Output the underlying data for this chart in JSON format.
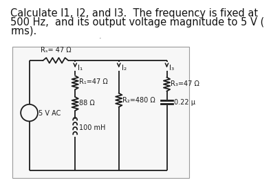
{
  "title_line1": "Calculate I1, I2, and I3.  The frequency is fixed at",
  "title_line2": "500 Hz,  and its output voltage magnitude to 5 V (",
  "title_line3": "rms).",
  "bg_color": "#ffffff",
  "line_color": "#1a1a1a",
  "Rs_label": "Rₛ= 47 Ω",
  "R1_label": "R₁=47 Ω",
  "R2_label": "R₂=480 Ω",
  "R3_label": "R₃=47 Ω",
  "L_label": "100 mH",
  "RL_label": "88 Ω",
  "C_label": "0.22 μ",
  "VS_label": "5 V AC",
  "I1_label": "I₁",
  "I2_label": "I₂",
  "I3_label": "I₃",
  "font_size_title": 10.5,
  "font_size_circuit": 7.5,
  "font_size_label": 7.0
}
